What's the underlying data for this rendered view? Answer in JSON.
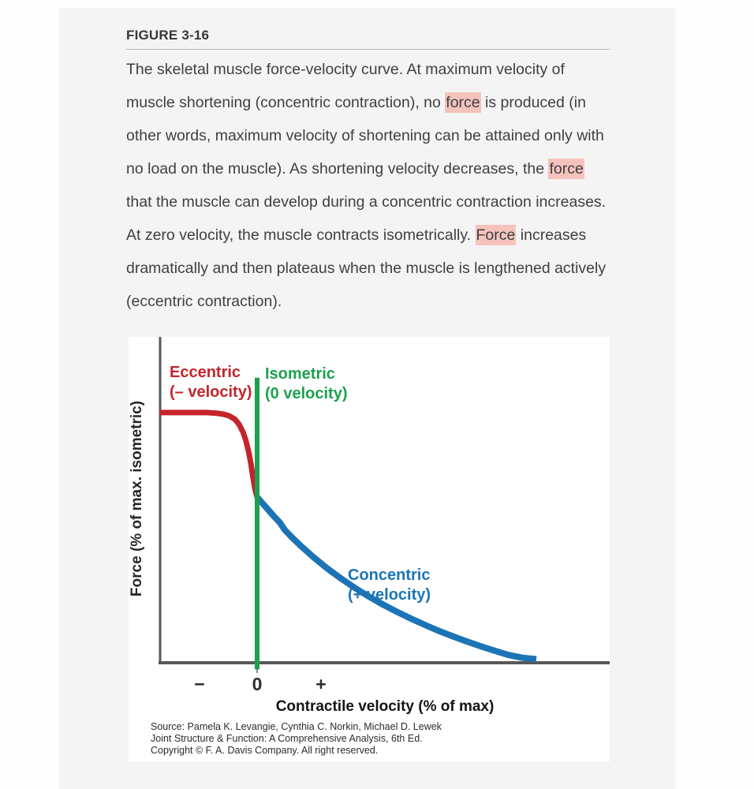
{
  "page": {
    "background": "#fdfdfd",
    "panel_background": "#f5f4f4"
  },
  "figure": {
    "label": "FIGURE 3-16"
  },
  "caption": {
    "highlight_color": "#f5c3bc",
    "segments": [
      {
        "text": "The skeletal muscle force-velocity curve. At maximum velocity of muscle shortening (concentric contraction), no ",
        "highlight": false
      },
      {
        "text": "force",
        "highlight": true
      },
      {
        "text": " is produced (in other words, maximum velocity of shortening can be attained only with no load on the muscle). As shortening velocity decreases, the ",
        "highlight": false
      },
      {
        "text": "force",
        "highlight": true
      },
      {
        "text": " that the muscle can develop during a concentric contraction increases. At zero velocity, the muscle contracts isometrically. ",
        "highlight": false
      },
      {
        "text": "Force",
        "highlight": true
      },
      {
        "text": " increases dramatically and then plateaus when the muscle is lengthened actively (eccentric contraction).",
        "highlight": false
      }
    ]
  },
  "chart_data": {
    "type": "line",
    "title": "",
    "xlabel": "Contractile velocity (% of max)",
    "ylabel": "Force (% of max. isometric)",
    "x_ticks": [
      "−",
      "0",
      "+"
    ],
    "x_range_pct_of_max_velocity": [
      -35,
      126
    ],
    "y_range_pct_of_max_isometric": [
      0,
      196
    ],
    "grid": false,
    "axis_color": "#58585a",
    "series": [
      {
        "name": "eccentric",
        "label": "Eccentric (– velocity)",
        "color": "#c5242b",
        "points": [
          [
            -35,
            151
          ],
          [
            -25,
            151
          ],
          [
            -18,
            151
          ],
          [
            -14,
            150.5
          ],
          [
            -12,
            150
          ],
          [
            -10,
            149
          ],
          [
            -8,
            147
          ],
          [
            -6.5,
            144
          ],
          [
            -5,
            139
          ],
          [
            -4,
            134
          ],
          [
            -3,
            127
          ],
          [
            -2.2,
            120
          ],
          [
            -1.5,
            112
          ],
          [
            -0.8,
            105
          ],
          [
            0,
            100
          ]
        ]
      },
      {
        "name": "isometric",
        "label": "Isometric (0 velocity)",
        "color": "#1ca14f",
        "points": [
          [
            0,
            -4
          ],
          [
            0,
            172
          ]
        ]
      },
      {
        "name": "concentric",
        "label": "Concentric (+ velocity)",
        "color": "#1c74b6",
        "points": [
          [
            0,
            100
          ],
          [
            2,
            96.1
          ],
          [
            4,
            92.3
          ],
          [
            6,
            88.5
          ],
          [
            8,
            84.9
          ],
          [
            10,
            80
          ],
          [
            13,
            74.8
          ],
          [
            16,
            70
          ],
          [
            20,
            64
          ],
          [
            25,
            57.1
          ],
          [
            30,
            50.9
          ],
          [
            35,
            45.2
          ],
          [
            40,
            40
          ],
          [
            45,
            35.2
          ],
          [
            50,
            30.8
          ],
          [
            55,
            26.7
          ],
          [
            60,
            22.9
          ],
          [
            65,
            19.3
          ],
          [
            70,
            16
          ],
          [
            75,
            12.9
          ],
          [
            80,
            10
          ],
          [
            85,
            7.3
          ],
          [
            90,
            4.7
          ],
          [
            95,
            3
          ],
          [
            100,
            2.2
          ]
        ]
      }
    ],
    "annotations": {
      "eccentric": {
        "line1": "Eccentric",
        "line2": "(– velocity)"
      },
      "isometric": {
        "line1": "Isometric",
        "line2": "(0 velocity)"
      },
      "concentric": {
        "line1": "Concentric",
        "line2": "(+ velocity)"
      }
    }
  },
  "source": {
    "lines": [
      "Source: Pamela K. Levangie, Cynthia C. Norkin, Michael D. Lewek",
      "Joint Structure & Function: A Comprehensive Analysis, 6th Ed.",
      "Copyright © F. A. Davis Company. All right reserved."
    ]
  }
}
